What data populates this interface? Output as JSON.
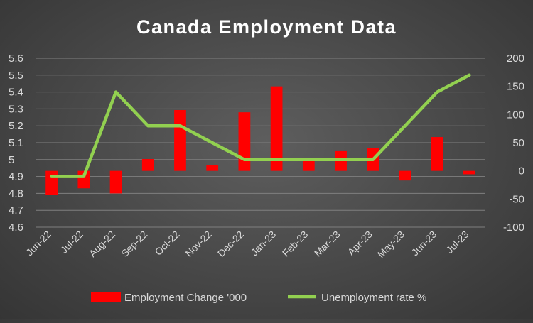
{
  "chart_data": {
    "type": "bar+line",
    "title": "Canada Employment Data",
    "categories": [
      "Jun-22",
      "Jul-22",
      "Aug-22",
      "Sep-22",
      "Oct-22",
      "Nov-22",
      "Dec-22",
      "Jan-23",
      "Feb-23",
      "Mar-23",
      "Apr-23",
      "May-23",
      "Jun-23",
      "Jul-23"
    ],
    "series": [
      {
        "name": "Employment Change '000",
        "type": "bar",
        "axis": "right",
        "color": "#ff0000",
        "values": [
          -43,
          -31,
          -40,
          21,
          108,
          10,
          104,
          150,
          22,
          35,
          41,
          -17,
          60,
          -6
        ]
      },
      {
        "name": "Unemployment rate %",
        "type": "line",
        "axis": "left",
        "color": "#92d050",
        "values": [
          4.9,
          4.9,
          5.4,
          5.2,
          5.2,
          5.1,
          5.0,
          5.0,
          5.0,
          5.0,
          5.0,
          5.2,
          5.4,
          5.5
        ]
      }
    ],
    "y_left": {
      "ylim": [
        4.6,
        5.6
      ],
      "ticks": [
        "4.6",
        "4.7",
        "4.8",
        "4.9",
        "5",
        "5.1",
        "5.2",
        "5.3",
        "5.4",
        "5.5",
        "5.6"
      ]
    },
    "y_right": {
      "ylim": [
        -100,
        200
      ],
      "ticks": [
        "-100",
        "-50",
        "0",
        "50",
        "100",
        "150",
        "200"
      ]
    },
    "grid": true,
    "legend": "bottom"
  },
  "colors": {
    "background": "#474747",
    "grid": "#7f7f7f",
    "text": "#d9d9d9"
  }
}
